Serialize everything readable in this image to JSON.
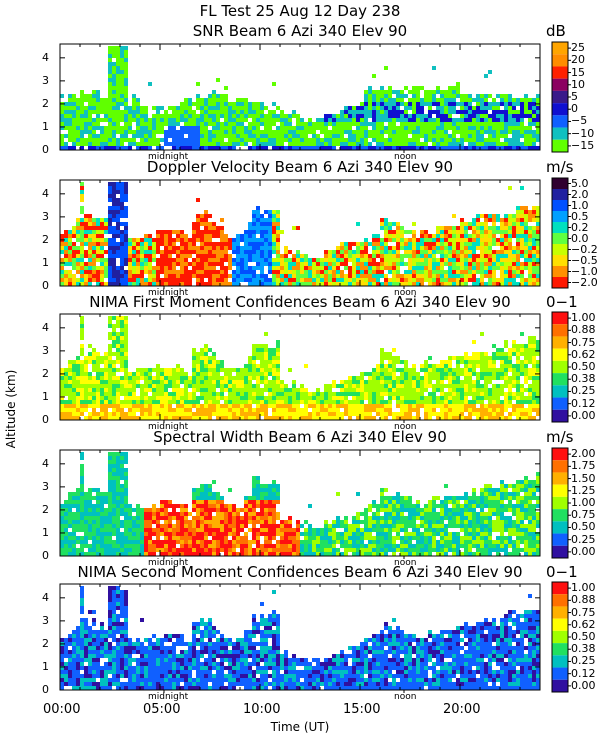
{
  "header": {
    "line1": "FL Test  25 Aug 12 Day 238"
  },
  "axes": {
    "ylabel": "Altitude (km)",
    "xlabel": "Time (UT)",
    "x_ticks": [
      "00:00",
      "05:00",
      "10:00",
      "15:00",
      "20:00"
    ],
    "y_ticks": [
      "0",
      "1",
      "2",
      "3",
      "4"
    ],
    "midnight_label": "midnight",
    "noon_label": "noon"
  },
  "chart_data": [
    {
      "type": "heatmap",
      "title": "SNR Beam 6 Azi 340 Elev 90",
      "unit": "dB",
      "xlabel": "Time (UT)",
      "ylabel": "Altitude (km)",
      "xlim": [
        0,
        24
      ],
      "ylim": [
        0,
        4.6
      ],
      "colorbar_ticks": [
        "25",
        "20",
        "15",
        "10",
        "5",
        "0",
        "−5",
        "−10",
        "−15"
      ],
      "colorbar_values": [
        25,
        20,
        15,
        10,
        5,
        0,
        -5,
        -10,
        -15
      ],
      "colors": [
        "#ffa500",
        "#ff8c00",
        "#ff2000",
        "#8b0060",
        "#3a1a8a",
        "#1010d0",
        "#1060ff",
        "#10c0c0",
        "#60ff00"
      ],
      "midnight_hour": 5.2,
      "noon_hour": 17.2
    },
    {
      "type": "heatmap",
      "title": "Doppler Velocity Beam 6 Azi 340 Elev 90",
      "unit": "m/s",
      "xlabel": "Time (UT)",
      "ylabel": "Altitude (km)",
      "xlim": [
        0,
        24
      ],
      "ylim": [
        0,
        4.6
      ],
      "colorbar_ticks": [
        "5.0",
        "2.0",
        "1.0",
        "0.5",
        "0.2",
        "0.0",
        "−0.2",
        "−0.5",
        "−1.0",
        "−2.0"
      ],
      "colorbar_values": [
        5.0,
        2.0,
        1.0,
        0.5,
        0.2,
        0.0,
        -0.2,
        -0.5,
        -1.0,
        -2.0
      ],
      "colors": [
        "#300030",
        "#2020a0",
        "#0050ff",
        "#00a0ff",
        "#00e0c0",
        "#60ff40",
        "#c8ff00",
        "#ffe000",
        "#ff9000",
        "#ff1800"
      ],
      "midnight_hour": 5.2,
      "noon_hour": 17.2
    },
    {
      "type": "heatmap",
      "title": "NIMA First Moment Confidences Beam 6 Azi 340 Elev 90",
      "unit": "0−1",
      "xlabel": "Time (UT)",
      "ylabel": "Altitude (km)",
      "xlim": [
        0,
        24
      ],
      "ylim": [
        0,
        4.6
      ],
      "colorbar_ticks": [
        "1.00",
        "0.88",
        "0.75",
        "0.62",
        "0.50",
        "0.38",
        "0.25",
        "0.12",
        "0.00"
      ],
      "colorbar_values": [
        1.0,
        0.88,
        0.75,
        0.62,
        0.5,
        0.38,
        0.25,
        0.12,
        0.0
      ],
      "colors": [
        "#ff1010",
        "#ff7000",
        "#ffb000",
        "#ffff00",
        "#a0ff00",
        "#20e060",
        "#00c0c0",
        "#1060ff",
        "#3010a0"
      ],
      "midnight_hour": 5.2,
      "noon_hour": 17.2
    },
    {
      "type": "heatmap",
      "title": "Spectral Width Beam 6 Azi 340 Elev 90",
      "unit": "m/s",
      "xlabel": "Time (UT)",
      "ylabel": "Altitude (km)",
      "xlim": [
        0,
        24
      ],
      "ylim": [
        0,
        4.6
      ],
      "colorbar_ticks": [
        "2.00",
        "1.75",
        "1.50",
        "1.25",
        "1.00",
        "0.75",
        "0.50",
        "0.25",
        "0.00"
      ],
      "colorbar_values": [
        2.0,
        1.75,
        1.5,
        1.25,
        1.0,
        0.75,
        0.5,
        0.25,
        0.0
      ],
      "colors": [
        "#ff1010",
        "#ff7000",
        "#ffb000",
        "#ffff00",
        "#a0ff00",
        "#20e060",
        "#00c0c0",
        "#1060ff",
        "#3010a0"
      ],
      "midnight_hour": 5.2,
      "noon_hour": 17.2
    },
    {
      "type": "heatmap",
      "title": "NIMA Second Moment Confidences Beam 6 Azi 340 Elev 90",
      "unit": "0−1",
      "xlabel": "Time (UT)",
      "ylabel": "Altitude (km)",
      "xlim": [
        0,
        24
      ],
      "ylim": [
        0,
        4.6
      ],
      "colorbar_ticks": [
        "1.00",
        "0.88",
        "0.75",
        "0.62",
        "0.50",
        "0.38",
        "0.25",
        "0.12",
        "0.00"
      ],
      "colorbar_values": [
        1.0,
        0.88,
        0.75,
        0.62,
        0.5,
        0.38,
        0.25,
        0.12,
        0.0
      ],
      "colors": [
        "#ff1010",
        "#ff7000",
        "#ffb000",
        "#ffff00",
        "#a0ff00",
        "#20e060",
        "#00c0c0",
        "#1060ff",
        "#3010a0"
      ],
      "midnight_hour": 5.2,
      "noon_hour": 17.2
    }
  ]
}
